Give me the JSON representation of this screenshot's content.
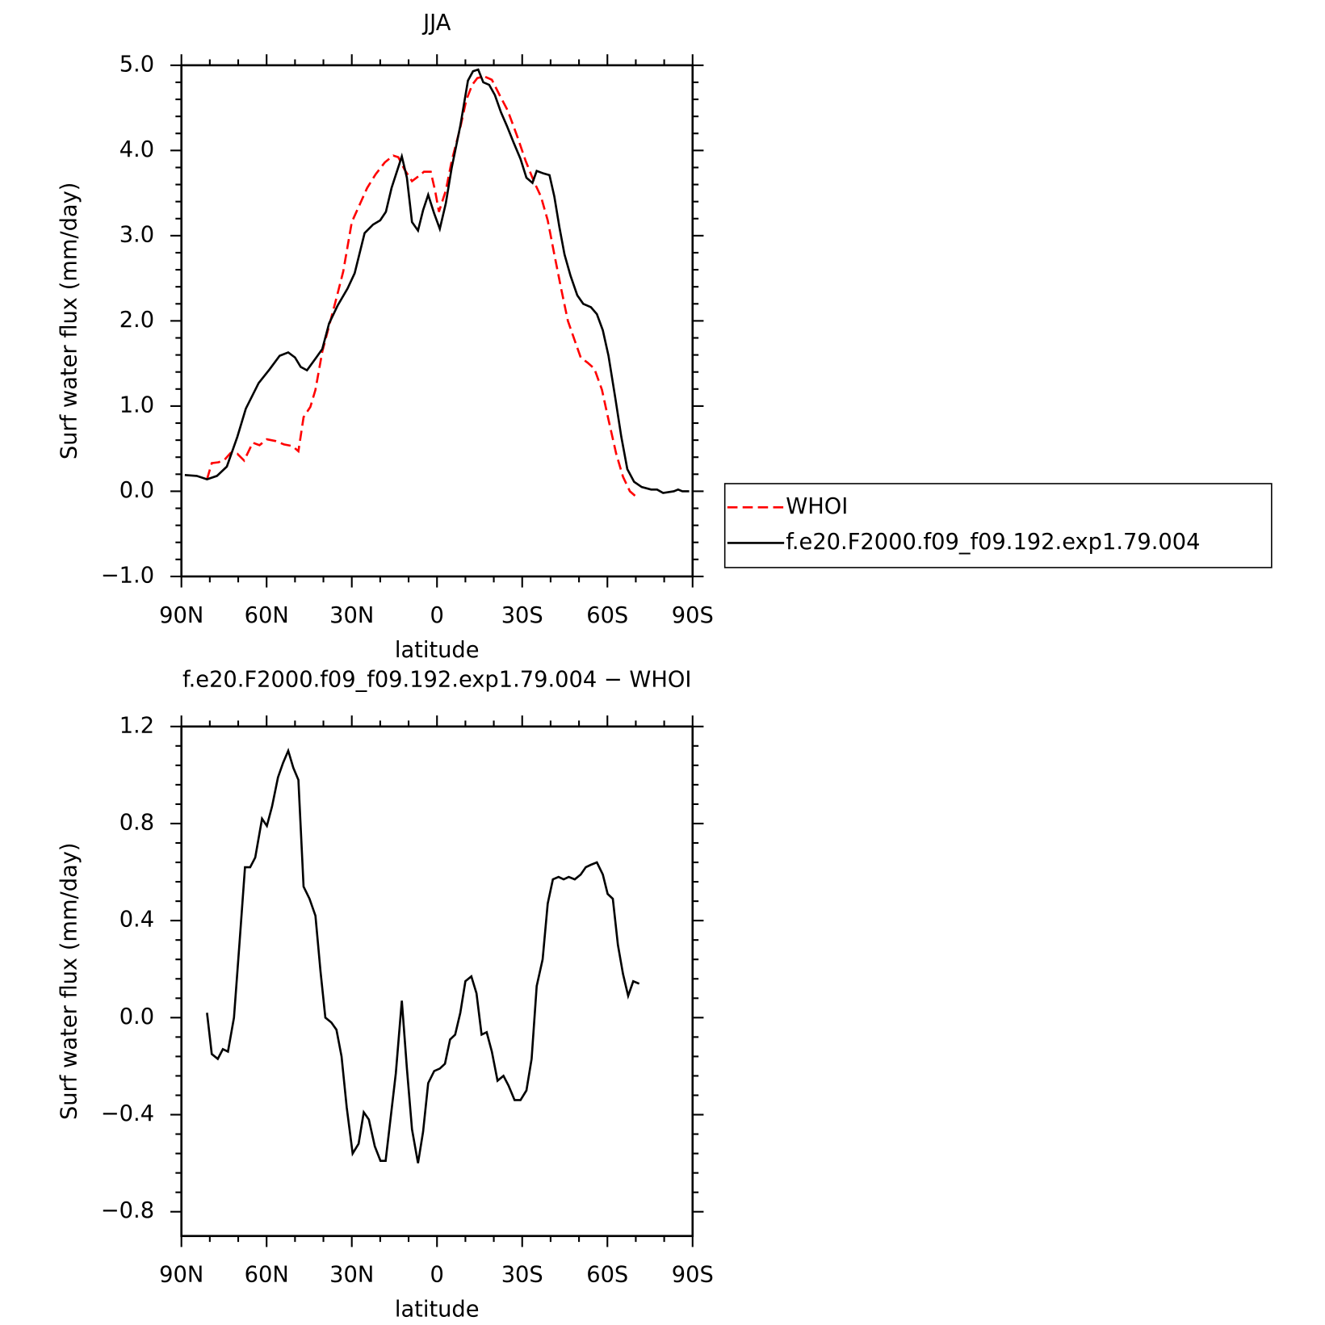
{
  "chart_data": [
    {
      "type": "line",
      "title": "JJA",
      "xlabel": "latitude",
      "ylabel": "Surf water flux (mm/day)",
      "xlim": [
        90,
        -90
      ],
      "xticks": [
        {
          "value": 90,
          "label": "90N"
        },
        {
          "value": 60,
          "label": "60N"
        },
        {
          "value": 30,
          "label": "30N"
        },
        0,
        {
          "value": -30,
          "label": "30S"
        },
        {
          "value": -60,
          "label": "60S"
        },
        {
          "value": -90,
          "label": "90S"
        }
      ],
      "ylim": [
        -1,
        5
      ],
      "yticks": [
        {
          "value": -1,
          "label": "−1.0"
        },
        {
          "value": 0,
          "label": "0.0"
        },
        {
          "value": 1,
          "label": "1.0"
        },
        {
          "value": 2,
          "label": "2.0"
        },
        {
          "value": 3,
          "label": "3.0"
        },
        {
          "value": 4,
          "label": "4.0"
        },
        {
          "value": 5,
          "label": "5.0"
        }
      ],
      "legend": "right",
      "series": [
        {
          "name": "WHOI",
          "color": "#ff0000",
          "line_style": "dashed",
          "x": [
            81,
            79.3,
            76.9,
            74.8,
            72.7,
            70.3,
            67.9,
            64.9,
            62.5,
            59.9,
            56.9,
            53.9,
            50.9,
            48.8,
            47,
            44.6,
            42.8,
            40.4,
            38,
            35.7,
            33,
            30,
            27,
            24.6,
            21.6,
            18.4,
            15.4,
            13.6,
            11.5,
            8.8,
            6.4,
            4.6,
            2.2,
            0.7,
            -0.7,
            -3.1,
            -5.2,
            -8.2,
            -10.3,
            -12.4,
            -14.2,
            -16.6,
            -19.3,
            -22.2,
            -24.9,
            -28.2,
            -31.2,
            -34.2,
            -36.6,
            -39,
            -41.3,
            -43.7,
            -46.1,
            -48.8,
            -50.6,
            -53,
            -55.4,
            -58.1,
            -60.4,
            -63.1,
            -65.5,
            -67.9,
            -70.3,
            -71.2
          ],
          "values": [
            0.14,
            0.33,
            0.34,
            0.37,
            0.45,
            0.44,
            0.36,
            0.57,
            0.54,
            0.61,
            0.59,
            0.55,
            0.53,
            0.47,
            0.87,
            0.99,
            1.19,
            1.64,
            1.94,
            2.23,
            2.58,
            3.16,
            3.38,
            3.56,
            3.72,
            3.86,
            3.94,
            3.92,
            3.78,
            3.64,
            3.7,
            3.75,
            3.75,
            3.53,
            3.28,
            3.53,
            3.88,
            4.27,
            4.59,
            4.77,
            4.85,
            4.87,
            4.83,
            4.64,
            4.47,
            4.17,
            3.88,
            3.63,
            3.46,
            3.18,
            2.78,
            2.38,
            2.0,
            1.74,
            1.57,
            1.51,
            1.44,
            1.19,
            0.84,
            0.44,
            0.17,
            0.0,
            -0.07,
            -0.07
          ]
        },
        {
          "name": "f.e20.F2000.f09_f09.192.exp1.79.004",
          "color": "#000000",
          "line_style": "solid",
          "x": [
            88.8,
            84.6,
            81,
            77.5,
            74,
            70.3,
            67.3,
            62.8,
            59,
            55.4,
            52.4,
            50,
            48,
            45.8,
            42.5,
            40.4,
            38,
            35,
            31.5,
            29,
            25.5,
            22.5,
            20,
            18,
            16,
            12.4,
            10.6,
            8.8,
            6.7,
            4.9,
            3.1,
            1,
            -1,
            -3.1,
            -5.2,
            -8.2,
            -10.9,
            -12.7,
            -14.5,
            -16.3,
            -18.4,
            -20.4,
            -22.5,
            -24.6,
            -27,
            -29.4,
            -31.5,
            -33.6,
            -35.1,
            -37.5,
            -39.6,
            -41.3,
            -43.1,
            -44.9,
            -47,
            -49.4,
            -51.5,
            -54.2,
            -56.3,
            -58.4,
            -60.4,
            -62.8,
            -64.9,
            -67,
            -69.4,
            -72.1,
            -75.4,
            -77.5,
            -79.6,
            -83.4,
            -84.9,
            -86.4,
            -88.8
          ],
          "values": [
            0.19,
            0.18,
            0.14,
            0.18,
            0.29,
            0.64,
            0.97,
            1.27,
            1.43,
            1.59,
            1.63,
            1.57,
            1.46,
            1.42,
            1.57,
            1.67,
            1.97,
            2.18,
            2.38,
            2.56,
            3.03,
            3.13,
            3.18,
            3.28,
            3.56,
            3.93,
            3.68,
            3.16,
            3.06,
            3.3,
            3.48,
            3.26,
            3.08,
            3.38,
            3.8,
            4.29,
            4.82,
            4.93,
            4.95,
            4.8,
            4.77,
            4.65,
            4.45,
            4.29,
            4.09,
            3.9,
            3.68,
            3.62,
            3.76,
            3.73,
            3.71,
            3.46,
            3.1,
            2.78,
            2.53,
            2.3,
            2.2,
            2.16,
            2.08,
            1.89,
            1.59,
            1.09,
            0.64,
            0.26,
            0.11,
            0.05,
            0.02,
            0.02,
            -0.02,
            0.0,
            0.02,
            0.0,
            0.0
          ]
        }
      ]
    },
    {
      "type": "line",
      "title": "f.e20.F2000.f09_f09.192.exp1.79.004 − WHOI",
      "xlabel": "latitude",
      "ylabel": "Surf water flux (mm/day)",
      "xlim": [
        90,
        -90
      ],
      "xticks": [
        {
          "value": 90,
          "label": "90N"
        },
        {
          "value": 60,
          "label": "60N"
        },
        {
          "value": 30,
          "label": "30N"
        },
        0,
        {
          "value": -30,
          "label": "30S"
        },
        {
          "value": -60,
          "label": "60S"
        },
        {
          "value": -90,
          "label": "90S"
        }
      ],
      "ylim": [
        -0.9,
        1.2
      ],
      "yticks": [
        {
          "value": -0.8,
          "label": "−0.8"
        },
        {
          "value": -0.4,
          "label": "−0.4"
        },
        {
          "value": 0,
          "label": "0.0"
        },
        0.4,
        0.8,
        1.2
      ],
      "series": [
        {
          "color": "#000000",
          "line_style": "solid",
          "x": [
            81,
            79.3,
            77.2,
            75.4,
            73.6,
            71.5,
            69.4,
            67.6,
            65.8,
            64,
            61.6,
            59.9,
            58.1,
            56,
            54.2,
            52.4,
            50.6,
            48.8,
            47,
            44.9,
            42.8,
            41,
            39.3,
            37.2,
            35.4,
            33.6,
            31.8,
            29.7,
            27.6,
            25.8,
            24,
            21.9,
            19.9,
            18.1,
            14.5,
            12.4,
            10.6,
            8.8,
            6.7,
            4.9,
            3.1,
            1,
            -1,
            -2.8,
            -4.6,
            -6.4,
            -8.2,
            -10,
            -12.1,
            -13.9,
            -15.7,
            -17.5,
            -19.3,
            -21.3,
            -23.4,
            -25.2,
            -27.3,
            -29.4,
            -31.5,
            -33.3,
            -35.1,
            -37.2,
            -39,
            -40.8,
            -42.8,
            -44.6,
            -46.4,
            -48.5,
            -50.6,
            -52.4,
            -54.2,
            -56.3,
            -58.4,
            -60.1,
            -61.9,
            -63.7,
            -65.5,
            -67.3,
            -69.1,
            -71.2
          ],
          "values": [
            0.02,
            -0.15,
            -0.17,
            -0.13,
            -0.14,
            0.0,
            0.33,
            0.62,
            0.62,
            0.66,
            0.82,
            0.79,
            0.87,
            0.99,
            1.05,
            1.1,
            1.03,
            0.98,
            0.54,
            0.49,
            0.42,
            0.19,
            0.0,
            -0.02,
            -0.05,
            -0.16,
            -0.37,
            -0.56,
            -0.52,
            -0.39,
            -0.42,
            -0.53,
            -0.59,
            -0.59,
            -0.23,
            0.07,
            -0.21,
            -0.46,
            -0.6,
            -0.47,
            -0.27,
            -0.22,
            -0.21,
            -0.19,
            -0.09,
            -0.07,
            0.02,
            0.15,
            0.17,
            0.1,
            -0.07,
            -0.06,
            -0.14,
            -0.26,
            -0.24,
            -0.28,
            -0.34,
            -0.34,
            -0.3,
            -0.17,
            0.13,
            0.24,
            0.47,
            0.57,
            0.58,
            0.57,
            0.58,
            0.57,
            0.59,
            0.62,
            0.63,
            0.64,
            0.59,
            0.51,
            0.49,
            0.3,
            0.18,
            0.09,
            0.15,
            0.14
          ]
        }
      ]
    }
  ]
}
